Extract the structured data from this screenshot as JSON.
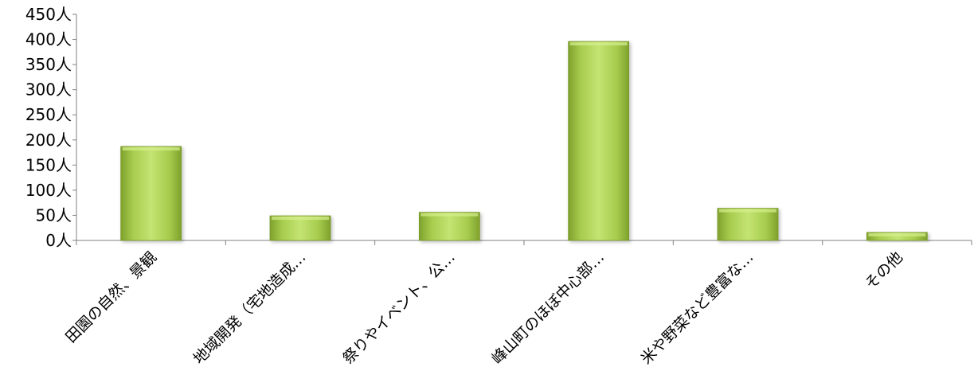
{
  "chart_data": {
    "type": "bar",
    "title": "",
    "xlabel": "",
    "ylabel": "",
    "categories": [
      "田園の自然、景観",
      "地域開発（宅地造成…",
      "祭りやイベント、公…",
      "峰山町のほぼ中心部…",
      "米や野菜など豊富な…",
      "その他"
    ],
    "values": [
      187,
      49,
      56,
      396,
      64,
      16
    ],
    "ylim": [
      0,
      450
    ],
    "yticks": [
      0,
      50,
      100,
      150,
      200,
      250,
      300,
      350,
      400,
      450
    ],
    "y_unit": "人",
    "grid": false,
    "legend": "none",
    "colors": {
      "bar_light": "#b8dd63",
      "bar_dark": "#7fa12d",
      "axis": "#808080"
    }
  }
}
